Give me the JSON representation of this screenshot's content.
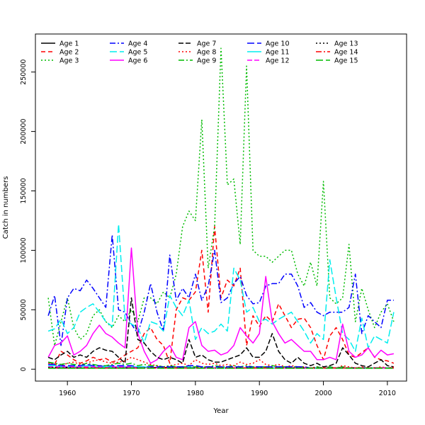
{
  "chart_data": {
    "type": "line",
    "title": "",
    "xlabel": "Year",
    "ylabel": "Catch in numbers",
    "xlim": [
      1955,
      2013
    ],
    "ylim": [
      -10000,
      282000
    ],
    "x_ticks": [
      1960,
      1970,
      1980,
      1990,
      2000,
      2010
    ],
    "y_ticks": [
      0,
      50000,
      100000,
      150000,
      200000,
      250000
    ],
    "grid": false,
    "legend_position": "top-left",
    "x": [
      1957,
      1958,
      1959,
      1960,
      1961,
      1962,
      1963,
      1964,
      1965,
      1966,
      1967,
      1968,
      1969,
      1970,
      1971,
      1972,
      1973,
      1974,
      1975,
      1976,
      1977,
      1978,
      1979,
      1980,
      1981,
      1982,
      1983,
      1984,
      1985,
      1986,
      1987,
      1988,
      1989,
      1990,
      1991,
      1992,
      1993,
      1994,
      1995,
      1996,
      1997,
      1998,
      1999,
      2000,
      2001,
      2002,
      2003,
      2004,
      2005,
      2006,
      2007,
      2008,
      2009,
      2010,
      2011
    ],
    "series": [
      {
        "name": "Age 1",
        "color": "#000000",
        "dash": "solid",
        "values": [
          1000,
          1000,
          1000,
          1000,
          1000,
          1000,
          1000,
          1000,
          1000,
          1000,
          1000,
          1000,
          1000,
          1000,
          1000,
          1500,
          1500,
          1500,
          1500,
          1500,
          1200,
          1200,
          1200,
          1000,
          1000,
          1000,
          1000,
          1000,
          1000,
          1000,
          1000,
          1000,
          1000,
          1000,
          1000,
          1000,
          1000,
          1000,
          1000,
          1000,
          1000,
          1000,
          1000,
          1000,
          1000,
          1000,
          1000,
          1000,
          1000,
          1000,
          1000,
          1000,
          1000,
          1000,
          1000
        ]
      },
      {
        "name": "Age 2",
        "color": "#ff0000",
        "dash": "6,4",
        "values": [
          6000,
          4000,
          15000,
          12000,
          8000,
          5000,
          7000,
          10000,
          8000,
          9000,
          6000,
          8000,
          12000,
          15000,
          18000,
          30000,
          35000,
          25000,
          20000,
          5000,
          50000,
          60000,
          58000,
          65000,
          100000,
          48000,
          120000,
          60000,
          75000,
          70000,
          85000,
          20000,
          45000,
          36000,
          45000,
          40000,
          55000,
          45000,
          35000,
          42000,
          43000,
          35000,
          20000,
          8000,
          28000,
          35000,
          25000,
          12000,
          10000,
          14000,
          18000,
          10000,
          8000,
          7000,
          5000
        ]
      },
      {
        "name": "Age 3",
        "color": "#00bb00",
        "dash": "2,3",
        "values": [
          60000,
          20000,
          40000,
          60000,
          35000,
          25000,
          30000,
          45000,
          50000,
          40000,
          35000,
          45000,
          40000,
          50000,
          40000,
          60000,
          60000,
          55000,
          65000,
          60000,
          80000,
          120000,
          133000,
          125000,
          210000,
          85000,
          120000,
          270000,
          155000,
          160000,
          105000,
          255000,
          100000,
          95000,
          95000,
          90000,
          95000,
          100000,
          100000,
          80000,
          70000,
          90000,
          70000,
          158000,
          60000,
          55000,
          60000,
          105000,
          40000,
          68000,
          50000,
          35000,
          48000,
          55000,
          40000
        ]
      },
      {
        "name": "Age 4",
        "color": "#0000ff",
        "dash": "8,3,2,3",
        "values": [
          45000,
          62000,
          20000,
          60000,
          68000,
          66000,
          75000,
          68000,
          60000,
          52000,
          113000,
          50000,
          48000,
          38000,
          30000,
          48000,
          72000,
          48000,
          32000,
          96000,
          58000,
          68000,
          60000,
          80000,
          58000,
          70000,
          100000,
          56000,
          60000,
          72000,
          78000,
          62000,
          55000,
          56000,
          70000,
          72000,
          72000,
          80000,
          80000,
          70000,
          52000,
          56000,
          48000,
          45000,
          48000,
          48000,
          48000,
          52000,
          80000,
          30000,
          45000,
          40000,
          35000,
          58000,
          58000
        ]
      },
      {
        "name": "Age 5",
        "color": "#00eeee",
        "dash": "10,4",
        "values": [
          32000,
          34000,
          42000,
          30000,
          35000,
          48000,
          52000,
          55000,
          48000,
          40000,
          36000,
          122000,
          42000,
          38000,
          35000,
          22000,
          40000,
          38000,
          32000,
          62000,
          52000,
          45000,
          58000,
          25000,
          35000,
          30000,
          32000,
          38000,
          32000,
          85000,
          75000,
          48000,
          52000,
          40000,
          42000,
          38000,
          42000,
          45000,
          48000,
          40000,
          32000,
          22000,
          30000,
          25000,
          92000,
          60000,
          30000,
          25000,
          15000,
          43000,
          18000,
          28000,
          25000,
          22000,
          48000
        ]
      },
      {
        "name": "Age 6",
        "color": "#ff00ff",
        "dash": "solid",
        "values": [
          10000,
          20000,
          22000,
          28000,
          12000,
          15000,
          20000,
          30000,
          37000,
          30000,
          27000,
          22000,
          18000,
          102000,
          30000,
          15000,
          5000,
          8000,
          15000,
          20000,
          10000,
          8000,
          35000,
          40000,
          20000,
          15000,
          16000,
          12000,
          14000,
          20000,
          35000,
          28000,
          22000,
          30000,
          78000,
          40000,
          30000,
          22000,
          25000,
          20000,
          15000,
          15000,
          8000,
          8000,
          10000,
          8000,
          38000,
          15000,
          10000,
          12000,
          18000,
          10000,
          16000,
          12000,
          13000
        ]
      },
      {
        "name": "Age 7",
        "color": "#000000",
        "dash": "7,3",
        "values": [
          10000,
          8000,
          12000,
          15000,
          10000,
          12000,
          10000,
          15000,
          18000,
          16000,
          15000,
          10000,
          5000,
          60000,
          25000,
          22000,
          15000,
          10000,
          8000,
          10000,
          8000,
          5000,
          25000,
          10000,
          12000,
          8000,
          6000,
          6000,
          8000,
          10000,
          12000,
          18000,
          10000,
          10000,
          15000,
          30000,
          15000,
          8000,
          5000,
          10000,
          5000,
          3000,
          5000,
          2000,
          3000,
          5000,
          18000,
          12000,
          5000,
          3000,
          2000,
          5000,
          8000,
          3000,
          2000
        ]
      },
      {
        "name": "Age 8",
        "color": "#ff0000",
        "dash": "2,3",
        "values": [
          5000,
          4000,
          3000,
          5000,
          6000,
          4000,
          5000,
          7000,
          8000,
          6000,
          5000,
          6000,
          7000,
          10000,
          8000,
          6000,
          4000,
          3000,
          2000,
          3000,
          4000,
          5000,
          3000,
          8000,
          5000,
          4000,
          5000,
          3000,
          4000,
          3000,
          6000,
          4000,
          5000,
          8000,
          4000,
          3000,
          4000,
          2000,
          3000,
          2000,
          2000,
          1000,
          2000,
          1000,
          2000,
          1000,
          3000,
          2000,
          1000,
          2000,
          1000,
          1000,
          2000,
          1000,
          2000
        ]
      },
      {
        "name": "Age 9",
        "color": "#00bb00",
        "dash": "8,3,2,3",
        "values": [
          6000,
          5000,
          4000,
          5000,
          4000,
          3000,
          5000,
          4000,
          3000,
          3000,
          4000,
          5000,
          4000,
          5000,
          3000,
          4000,
          3000,
          3000,
          2000,
          3000,
          2000,
          2000,
          2000,
          2000,
          2000,
          2000,
          3000,
          2000,
          2000,
          3000,
          2000,
          3000,
          2000,
          2000,
          2000,
          3000,
          2000,
          2000,
          2000,
          2000,
          2000,
          1000,
          2000,
          1000,
          2000,
          1000,
          2000,
          1000,
          1000,
          1000,
          1000,
          1000,
          1000,
          1000,
          1000
        ]
      },
      {
        "name": "Age 10",
        "color": "#0000ff",
        "dash": "10,4",
        "values": [
          4000,
          4000,
          3000,
          3000,
          3000,
          3000,
          4000,
          3000,
          3000,
          2000,
          3000,
          3000,
          3000,
          3000,
          2000,
          2000,
          2000,
          2000,
          2000,
          2000,
          2000,
          2000,
          3000,
          3000,
          2000,
          2000,
          2000,
          2000,
          2000,
          2000,
          2000,
          2000,
          2000,
          2000,
          2000,
          2000,
          2000,
          2000,
          2000,
          2000,
          2000,
          1000,
          1000,
          1000,
          1000,
          1000,
          1000,
          1000,
          1000,
          1000,
          1000,
          1000,
          1000,
          1000,
          1000
        ]
      },
      {
        "name": "Age 11",
        "color": "#00eeee",
        "dash": "solid",
        "values": [
          3000,
          3000,
          2000,
          2000,
          2000,
          2000,
          3000,
          2000,
          2000,
          2000,
          2000,
          2000,
          2000,
          2000,
          2000,
          2000,
          1000,
          1000,
          1000,
          1000,
          1000,
          1000,
          2000,
          1000,
          1000,
          1000,
          1000,
          1000,
          1000,
          1000,
          1000,
          1000,
          1000,
          1000,
          1000,
          1000,
          1000,
          1000,
          1000,
          1000,
          1000,
          1000,
          1000,
          1000,
          1000,
          1000,
          1000,
          1000,
          1000,
          1000,
          1000,
          1000,
          1000,
          1000,
          1000
        ]
      },
      {
        "name": "Age 12",
        "color": "#ff00ff",
        "dash": "7,3",
        "values": [
          2000,
          2000,
          2000,
          2000,
          2000,
          2000,
          2000,
          2000,
          2000,
          1000,
          2000,
          2000,
          2000,
          2000,
          1000,
          1000,
          1000,
          1000,
          1000,
          1000,
          1000,
          1000,
          1000,
          1000,
          1000,
          1000,
          1000,
          1000,
          1000,
          1000,
          1000,
          1000,
          1000,
          1000,
          1000,
          1000,
          1000,
          1000,
          1000,
          1000,
          1000,
          1000,
          1000,
          1000,
          1000,
          1000,
          1000,
          1000,
          1000,
          1000,
          1000,
          1000,
          1000,
          1000,
          1000
        ]
      },
      {
        "name": "Age 13",
        "color": "#000000",
        "dash": "2,3",
        "values": [
          1500,
          1500,
          1000,
          1500,
          1000,
          1000,
          1000,
          1000,
          1000,
          1000,
          1000,
          1000,
          1000,
          1000,
          1000,
          1000,
          1000,
          1000,
          1000,
          1000,
          1000,
          1000,
          1000,
          1000,
          1000,
          1000,
          1000,
          1000,
          1000,
          1000,
          1000,
          1000,
          1000,
          1000,
          1000,
          1000,
          1000,
          1000,
          1000,
          1000,
          1000,
          1000,
          1000,
          1000,
          1000,
          1000,
          1000,
          1000,
          1000,
          1000,
          1000,
          1000,
          1000,
          1000,
          1000
        ]
      },
      {
        "name": "Age 14",
        "color": "#ff0000",
        "dash": "8,3,2,3",
        "values": [
          1000,
          1000,
          1000,
          1000,
          1000,
          1000,
          1000,
          1000,
          1000,
          1000,
          1000,
          1000,
          1000,
          1000,
          1000,
          1000,
          1000,
          1000,
          1000,
          1000,
          1000,
          1000,
          1000,
          1000,
          1000,
          1000,
          1000,
          1000,
          1000,
          1000,
          1000,
          1000,
          1000,
          1000,
          1000,
          1000,
          1000,
          1000,
          1000,
          1000,
          1000,
          1000,
          1000,
          1000,
          1000,
          1000,
          1000,
          1000,
          1000,
          1000,
          1000,
          1000,
          1000,
          1000,
          1000
        ]
      },
      {
        "name": "Age 15",
        "color": "#00bb00",
        "dash": "10,4",
        "values": [
          800,
          800,
          800,
          800,
          800,
          800,
          800,
          800,
          800,
          800,
          800,
          800,
          800,
          800,
          800,
          800,
          800,
          800,
          800,
          800,
          800,
          800,
          800,
          800,
          800,
          800,
          800,
          800,
          800,
          800,
          800,
          800,
          800,
          800,
          800,
          800,
          800,
          800,
          800,
          800,
          800,
          800,
          800,
          800,
          800,
          800,
          800,
          800,
          800,
          800,
          800,
          800,
          800,
          800,
          800
        ]
      }
    ]
  }
}
